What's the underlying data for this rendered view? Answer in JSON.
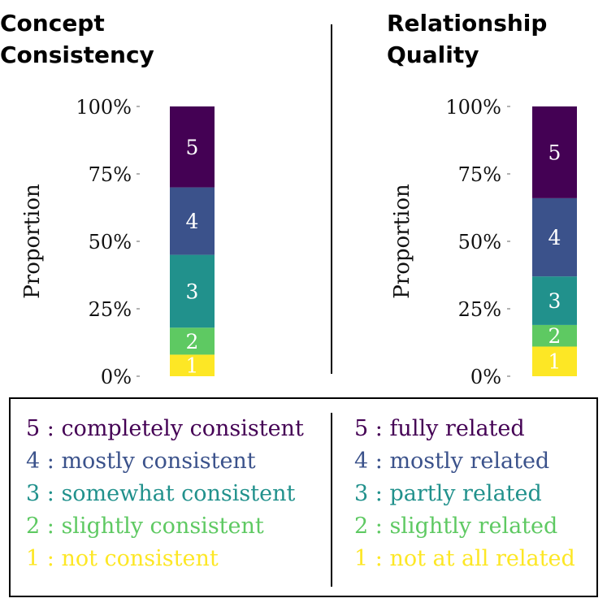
{
  "colors": {
    "5": "#440154",
    "4": "#3b528b",
    "3": "#21918c",
    "2": "#5ec962",
    "1": "#fde725"
  },
  "chart_data": [
    {
      "type": "bar",
      "stacked": true,
      "title_lines": [
        "Concept",
        "Consistency"
      ],
      "ylabel": "Proportion",
      "ylim": [
        0,
        1
      ],
      "y_ticks": [
        "0%",
        "25%",
        "50%",
        "75%",
        "100%"
      ],
      "series": [
        {
          "name": "1",
          "value": 0.08
        },
        {
          "name": "2",
          "value": 0.1
        },
        {
          "name": "3",
          "value": 0.27
        },
        {
          "name": "4",
          "value": 0.25
        },
        {
          "name": "5",
          "value": 0.3
        }
      ],
      "legend": [
        {
          "level": "5",
          "text": "5 : completely consistent"
        },
        {
          "level": "4",
          "text": "4 : mostly consistent"
        },
        {
          "level": "3",
          "text": "3 : somewhat consistent"
        },
        {
          "level": "2",
          "text": "2 : slightly consistent"
        },
        {
          "level": "1",
          "text": "1 : not consistent"
        }
      ]
    },
    {
      "type": "bar",
      "stacked": true,
      "title_lines": [
        "Relationship",
        "Quality"
      ],
      "ylabel": "Proportion",
      "ylim": [
        0,
        1
      ],
      "y_ticks": [
        "0%",
        "25%",
        "50%",
        "75%",
        "100%"
      ],
      "series": [
        {
          "name": "1",
          "value": 0.11
        },
        {
          "name": "2",
          "value": 0.08
        },
        {
          "name": "3",
          "value": 0.18
        },
        {
          "name": "4",
          "value": 0.29
        },
        {
          "name": "5",
          "value": 0.34
        }
      ],
      "legend": [
        {
          "level": "5",
          "text": "5 : fully related"
        },
        {
          "level": "4",
          "text": "4 : mostly related"
        },
        {
          "level": "3",
          "text": "3 : partly related"
        },
        {
          "level": "2",
          "text": "2 : slightly related"
        },
        {
          "level": "1",
          "text": "1 : not at all related"
        }
      ]
    }
  ]
}
